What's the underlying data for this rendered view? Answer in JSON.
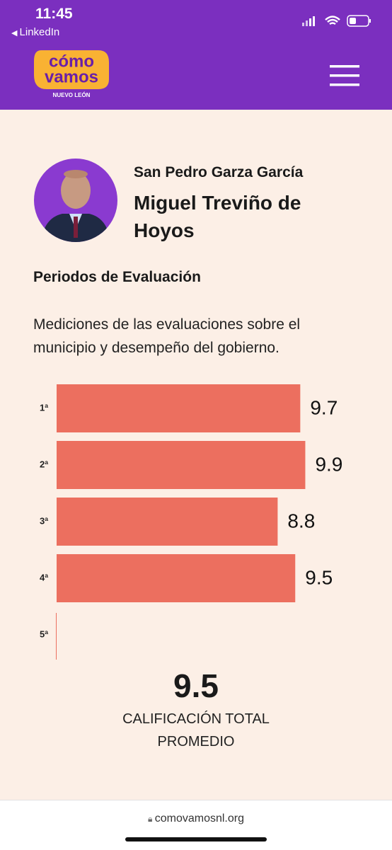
{
  "status_bar": {
    "time": "11:45",
    "back": "LinkedIn"
  },
  "header": {
    "logo_line1": "cómo",
    "logo_line2": "vamos",
    "logo_sub": "NUEVO LEÓN"
  },
  "profile": {
    "municipality": "San Pedro Garza García",
    "name": "Miguel Treviño de Hoyos"
  },
  "section": {
    "title": "Periodos de Evaluación",
    "description": "Mediciones de las evaluaciones sobre el municipio y desempeño del gobierno."
  },
  "chart_data": {
    "type": "bar",
    "orientation": "horizontal",
    "categories": [
      "1ª",
      "2ª",
      "3ª",
      "4ª",
      "5ª"
    ],
    "values": [
      9.7,
      9.9,
      8.8,
      9.5,
      null
    ],
    "color": "#ec6f5f",
    "xlim": [
      0,
      10
    ]
  },
  "summary": {
    "value": 9.5,
    "label": "CALIFICACIÓN TOTAL PROMEDIO"
  },
  "browser": {
    "url": "comovamosnl.org"
  }
}
